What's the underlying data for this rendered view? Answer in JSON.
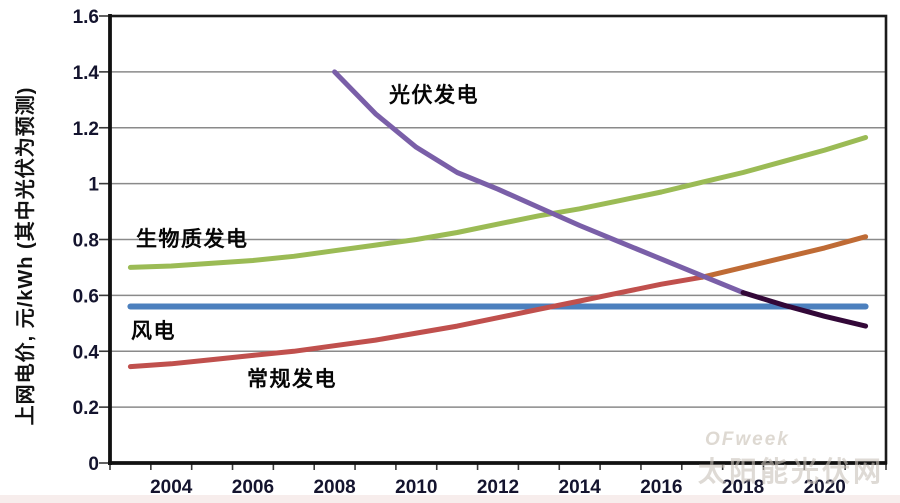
{
  "watermark": {
    "line1": "OFweek",
    "line2": "太阳能光伏网"
  },
  "chart_data": {
    "type": "line",
    "title": "",
    "xlabel": "",
    "ylabel": "上网电价, 元/kWh (其中光伏为预测)",
    "ylim": [
      0,
      1.6
    ],
    "x_range_years": [
      2002.5,
      2021.5
    ],
    "grid": true,
    "legend_position": "none",
    "y_ticks": [
      {
        "v": 0,
        "label": "0"
      },
      {
        "v": 0.2,
        "label": "0.2"
      },
      {
        "v": 0.4,
        "label": "0.4"
      },
      {
        "v": 0.6,
        "label": "0.6"
      },
      {
        "v": 0.8,
        "label": "0.8"
      },
      {
        "v": 1,
        "label": "1"
      },
      {
        "v": 1.2,
        "label": "1.2"
      },
      {
        "v": 1.4,
        "label": "1.4"
      },
      {
        "v": 1.6,
        "label": "1.6"
      }
    ],
    "x_ticks": [
      {
        "year": 2004,
        "label": "2004"
      },
      {
        "year": 2006,
        "label": "2006"
      },
      {
        "year": 2008,
        "label": "2008"
      },
      {
        "year": 2010,
        "label": "2010"
      },
      {
        "year": 2012,
        "label": "2012"
      },
      {
        "year": 2014,
        "label": "2014"
      },
      {
        "year": 2016,
        "label": "2016"
      },
      {
        "year": 2018,
        "label": "2018"
      },
      {
        "year": 2020,
        "label": "2020"
      }
    ],
    "series": [
      {
        "id": "wind",
        "name": "风电",
        "color": "#4C80BE",
        "width": 6,
        "x": [
          2003,
          2021
        ],
        "y": [
          0.56,
          0.56
        ]
      },
      {
        "id": "biomass",
        "name": "生物质发电",
        "color": "#9BBB55",
        "width": 5,
        "x": [
          2003,
          2004,
          2005,
          2006,
          2007,
          2008,
          2009,
          2010,
          2011,
          2012,
          2013,
          2014,
          2015,
          2016,
          2017,
          2018,
          2019,
          2020,
          2021
        ],
        "y": [
          0.7,
          0.705,
          0.715,
          0.725,
          0.74,
          0.76,
          0.78,
          0.8,
          0.825,
          0.855,
          0.885,
          0.91,
          0.94,
          0.97,
          1.005,
          1.04,
          1.08,
          1.12,
          1.165
        ]
      },
      {
        "id": "conventional",
        "name": "常规发电",
        "color": "#C0504D",
        "width": 5,
        "x": [
          2003,
          2004,
          2005,
          2006,
          2007,
          2008,
          2009,
          2010,
          2011,
          2012,
          2013,
          2014,
          2015,
          2016,
          2017
        ],
        "y": [
          0.345,
          0.355,
          0.37,
          0.385,
          0.4,
          0.42,
          0.44,
          0.465,
          0.49,
          0.52,
          0.55,
          0.58,
          0.61,
          0.64,
          0.665
        ]
      },
      {
        "id": "conventional-extended",
        "name": "常规发电(延伸)",
        "color": "#BF6B35",
        "width": 5,
        "x": [
          2017,
          2018,
          2019,
          2020,
          2021
        ],
        "y": [
          0.665,
          0.7,
          0.735,
          0.77,
          0.81
        ]
      },
      {
        "id": "solar-actual",
        "name": "光伏发电",
        "color": "#7A5FA8",
        "width": 5,
        "x": [
          2008,
          2009,
          2010,
          2011,
          2012,
          2013,
          2014,
          2015,
          2016,
          2017,
          2018
        ],
        "y": [
          1.4,
          1.25,
          1.13,
          1.04,
          0.98,
          0.915,
          0.85,
          0.79,
          0.73,
          0.67,
          0.61
        ]
      },
      {
        "id": "solar-forecast",
        "name": "光伏发电(预测)",
        "color": "#330838",
        "width": 5,
        "x": [
          2018,
          2019,
          2020,
          2021
        ],
        "y": [
          0.61,
          0.565,
          0.525,
          0.49
        ]
      }
    ],
    "annotations": [
      {
        "id": "solar",
        "text": "光伏发电"
      },
      {
        "id": "biomass",
        "text": "生物质发电"
      },
      {
        "id": "wind",
        "text": "风电"
      },
      {
        "id": "conventional",
        "text": "常规发电"
      }
    ]
  }
}
